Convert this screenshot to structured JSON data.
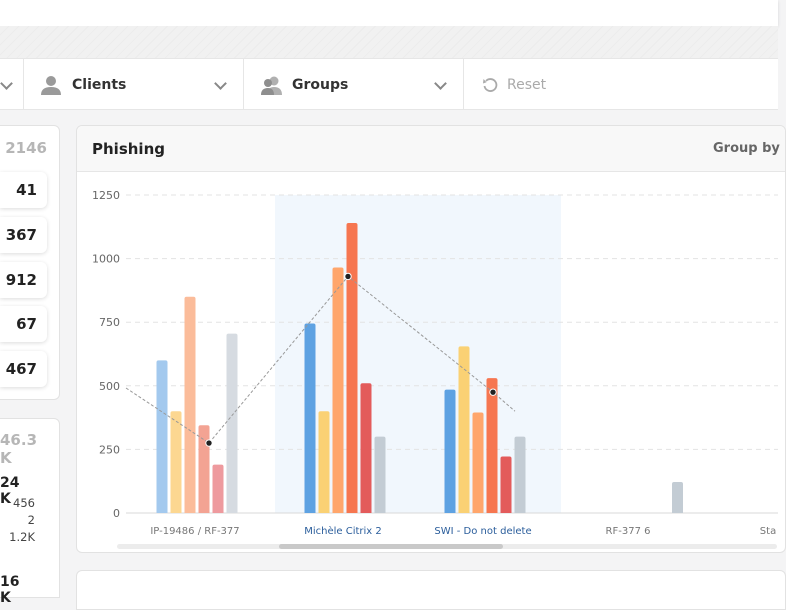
{
  "filters": {
    "clients_label": "Clients",
    "groups_label": "Groups",
    "reset_label": "Reset"
  },
  "left_stats": {
    "total": "2146",
    "values": [
      "41",
      "367",
      "912",
      "67",
      "467"
    ]
  },
  "left_stats2": {
    "total": "46.3 K",
    "big": "24 K",
    "small": [
      "456",
      "2",
      "1.2K"
    ],
    "next": "16 K"
  },
  "panel": {
    "title": "Phishing",
    "group_by_label": "Group by"
  },
  "chart_data": {
    "type": "bar",
    "ylim": [
      0,
      1250
    ],
    "yticks": [
      0,
      250,
      500,
      750,
      1000,
      1250
    ],
    "grid": true,
    "categories": [
      "IP-19486 / RF-377",
      "Michèle Citrix 2",
      "SWI - Do not delete",
      "RF-377 6",
      "Sta"
    ],
    "highlighted": [
      "Michèle Citrix 2",
      "SWI - Do not delete"
    ],
    "series": [
      {
        "color": "#a3c9ee",
        "values": [
          600,
          null,
          null,
          null,
          null
        ]
      },
      {
        "color": "#fcd791",
        "values": [
          400,
          null,
          null,
          null,
          null
        ]
      },
      {
        "color": "#fbbc9a",
        "values": [
          850,
          null,
          null,
          null,
          null
        ]
      },
      {
        "color": "#f3a393",
        "values": [
          345,
          null,
          null,
          null,
          null
        ]
      },
      {
        "color": "#ee9a9e",
        "values": [
          190,
          null,
          null,
          null,
          null
        ]
      },
      {
        "color": "#d6dbe1",
        "values": [
          705,
          null,
          null,
          null,
          null
        ]
      },
      {
        "color": "#5ea2e2",
        "values": [
          null,
          745,
          485,
          null,
          null
        ]
      },
      {
        "color": "#fad174",
        "values": [
          null,
          400,
          655,
          null,
          null
        ]
      },
      {
        "color": "#ffa66c",
        "values": [
          null,
          965,
          395,
          null,
          null
        ]
      },
      {
        "color": "#f67650",
        "values": [
          null,
          1140,
          530,
          null,
          null
        ]
      },
      {
        "color": "#e35b5b",
        "values": [
          null,
          510,
          222,
          null,
          null
        ]
      },
      {
        "color": "#c3ccd4",
        "values": [
          null,
          300,
          300,
          122,
          null
        ]
      }
    ],
    "line": {
      "values": [
        275,
        930,
        475
      ],
      "color": "#999999"
    }
  }
}
